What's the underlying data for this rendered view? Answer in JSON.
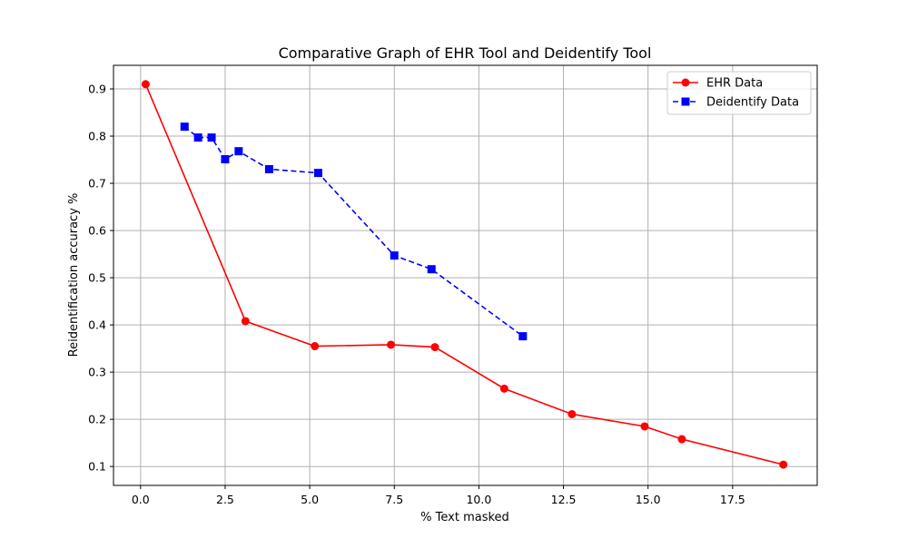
{
  "chart_data": {
    "type": "line",
    "title": "Comparative Graph of EHR Tool and Deidentify Tool",
    "xlabel": "% Text masked",
    "ylabel": "Reidentification accuracy %",
    "xlim": [
      -0.8,
      20.0
    ],
    "ylim": [
      0.06,
      0.95
    ],
    "xticks": [
      0.0,
      2.5,
      5.0,
      7.5,
      10.0,
      12.5,
      15.0,
      17.5
    ],
    "xtick_labels": [
      "0.0",
      "2.5",
      "5.0",
      "7.5",
      "10.0",
      "12.5",
      "15.0",
      "17.5"
    ],
    "yticks": [
      0.1,
      0.2,
      0.3,
      0.4,
      0.5,
      0.6,
      0.7,
      0.8,
      0.9
    ],
    "ytick_labels": [
      "0.1",
      "0.2",
      "0.3",
      "0.4",
      "0.5",
      "0.6",
      "0.7",
      "0.8",
      "0.9"
    ],
    "grid": true,
    "legend_position": "top-right",
    "series": [
      {
        "name": "EHR Data",
        "color": "#ff0000",
        "line_style": "solid",
        "marker": "circle",
        "x": [
          0.15,
          3.1,
          5.15,
          7.4,
          8.7,
          10.75,
          12.75,
          14.9,
          16.0,
          19.0
        ],
        "y": [
          0.91,
          0.408,
          0.355,
          0.358,
          0.353,
          0.265,
          0.211,
          0.185,
          0.158,
          0.104
        ]
      },
      {
        "name": "Deidentify Data",
        "color": "#0000ff",
        "line_style": "dashed",
        "marker": "square",
        "x": [
          1.3,
          1.7,
          2.1,
          2.5,
          2.9,
          3.8,
          5.25,
          7.5,
          8.6,
          11.3
        ],
        "y": [
          0.82,
          0.797,
          0.797,
          0.751,
          0.768,
          0.73,
          0.722,
          0.547,
          0.518,
          0.376
        ]
      }
    ]
  }
}
